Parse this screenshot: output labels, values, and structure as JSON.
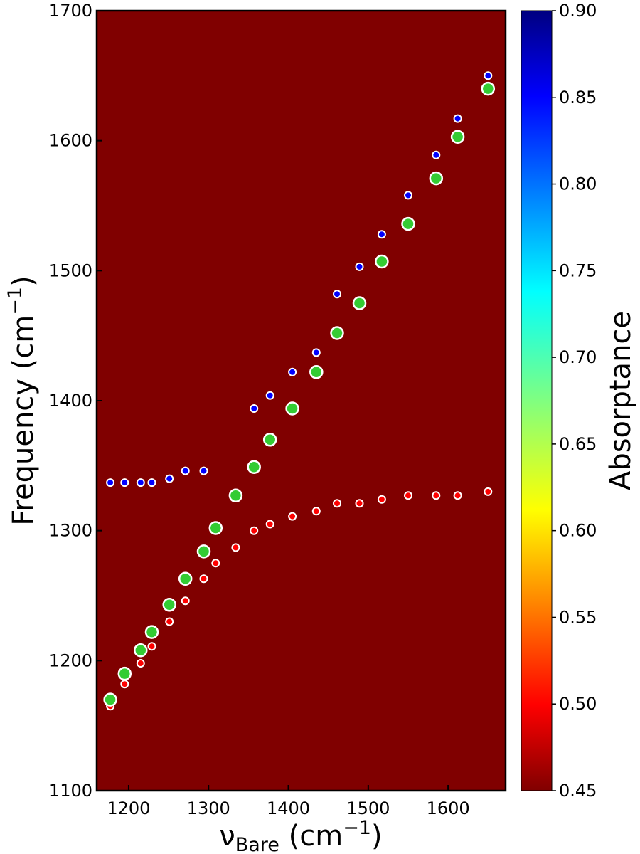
{
  "chart_data": {
    "type": "scatter",
    "xlim": [
      1160,
      1672
    ],
    "ylim": [
      1100,
      1700
    ],
    "x_ticks": [
      1200,
      1300,
      1400,
      1500,
      1600
    ],
    "y_ticks": [
      1100,
      1200,
      1300,
      1400,
      1500,
      1600,
      1700
    ],
    "xlabel": {
      "main": "ν",
      "sub": "Bare",
      "unit_open": " (cm",
      "sup": "−1",
      "unit_close": ")"
    },
    "ylabel": {
      "main": "Frequency (cm",
      "sup": "−1",
      "close": ")"
    },
    "background_value": 0.45,
    "background_color": "#800000",
    "colorbar": {
      "label": "Absorptance",
      "range": [
        0.45,
        0.9
      ],
      "ticks": [
        "0.45",
        "0.50",
        "0.55",
        "0.60",
        "0.65",
        "0.70",
        "0.75",
        "0.80",
        "0.85",
        "0.90"
      ],
      "colormap": "jet"
    },
    "series": [
      {
        "color": "#0000ff",
        "marker": "small",
        "x": [
          1177,
          1195,
          1215,
          1229,
          1251,
          1271,
          1294,
          1357,
          1377,
          1405,
          1435,
          1461,
          1489,
          1517,
          1550,
          1585,
          1612,
          1650
        ],
        "y": [
          1337,
          1337,
          1337,
          1337,
          1340,
          1346,
          1346,
          1394,
          1404,
          1422,
          1437,
          1482,
          1503,
          1528,
          1558,
          1589,
          1617,
          1650
        ]
      },
      {
        "color": "#ff0000",
        "marker": "small",
        "x": [
          1177,
          1195,
          1215,
          1229,
          1251,
          1271,
          1294,
          1309,
          1334,
          1357,
          1377,
          1405,
          1435,
          1461,
          1489,
          1517,
          1550,
          1585,
          1612,
          1650
        ],
        "y": [
          1165,
          1182,
          1198,
          1211,
          1230,
          1246,
          1263,
          1275,
          1287,
          1300,
          1305,
          1311,
          1315,
          1321,
          1321,
          1324,
          1327,
          1327,
          1327,
          1330
        ]
      },
      {
        "color": "#33cc33",
        "marker": "large",
        "x": [
          1177,
          1195,
          1215,
          1229,
          1251,
          1271,
          1294,
          1309,
          1334,
          1357,
          1377,
          1405,
          1435,
          1461,
          1489,
          1517,
          1550,
          1585,
          1612,
          1650
        ],
        "y": [
          1170,
          1190,
          1208,
          1222,
          1243,
          1263,
          1284,
          1302,
          1327,
          1349,
          1370,
          1394,
          1422,
          1452,
          1475,
          1507,
          1536,
          1571,
          1603,
          1640
        ]
      }
    ]
  }
}
